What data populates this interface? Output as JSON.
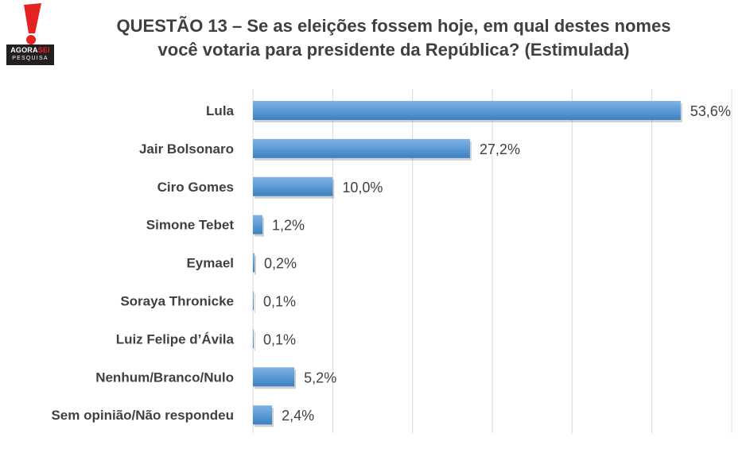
{
  "logo": {
    "name": "AgoraSei",
    "line1_a": "AGORA",
    "line1_b": "SEI",
    "line2": "PESQUISA"
  },
  "title": {
    "line1": "QUESTÃO 13 – Se as eleições fossem hoje, em qual destes nomes",
    "line2": "você votaria para presidente da República? (Estimulada)"
  },
  "colors": {
    "bar": "#5b9bd5",
    "bar_dark": "#3d7fc0",
    "grid": "#d9d9d9",
    "text": "#404040",
    "logo_red": "#e52421"
  },
  "chart_data": {
    "type": "bar",
    "orientation": "horizontal",
    "categories": [
      "Lula",
      "Jair Bolsonaro",
      "Ciro Gomes",
      "Simone Tebet",
      "Eymael",
      "Soraya Thronicke",
      "Luiz Felipe d’Ávila",
      "Nenhum/Branco/Nulo",
      "Sem opinião/Não respondeu"
    ],
    "values": [
      53.6,
      27.2,
      10.0,
      1.2,
      0.2,
      0.1,
      0.1,
      5.2,
      2.4
    ],
    "value_labels": [
      "53,6%",
      "27,2%",
      "10,0%",
      "1,2%",
      "0,2%",
      "0,1%",
      "0,1%",
      "5,2%",
      "2,4%"
    ],
    "xlim": [
      0,
      60
    ],
    "grid": true,
    "legend": "none"
  }
}
